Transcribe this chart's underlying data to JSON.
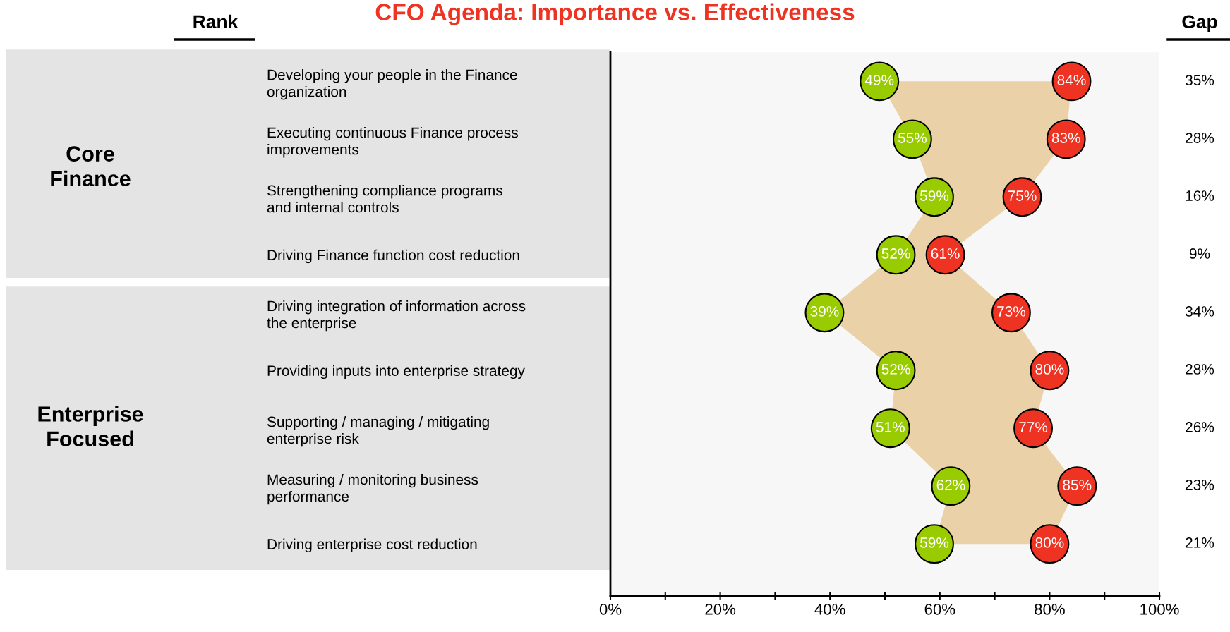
{
  "chart_data": {
    "type": "scatter",
    "title": "CFO Agenda: Importance vs. Effectiveness",
    "categories": [
      "Developing your people in the Finance\norganization",
      "Executing continuous Finance process\nimprovements",
      "Strengthening compliance programs\nand internal controls",
      "Driving Finance function cost reduction",
      "Driving integration of information across\nthe enterprise",
      "Providing inputs into enterprise strategy",
      "Supporting / managing / mitigating\nenterprise risk",
      "Measuring / monitoring business\nperformance",
      "Driving enterprise cost reduction"
    ],
    "series": [
      {
        "color": "#99cc00",
        "values": [
          49,
          55,
          59,
          52,
          39,
          52,
          51,
          62,
          59
        ],
        "value_labels": [
          "49%",
          "55%",
          "59%",
          "52%",
          "39%",
          "52%",
          "51%",
          "62%",
          "59%"
        ]
      },
      {
        "color": "#ee3322",
        "values": [
          84,
          83,
          75,
          61,
          73,
          80,
          77,
          85,
          80
        ],
        "value_labels": [
          "84%",
          "83%",
          "75%",
          "61%",
          "73%",
          "80%",
          "77%",
          "85%",
          "80%"
        ]
      }
    ],
    "orientation": "horizontal",
    "xlim": [
      0,
      100
    ],
    "xticks": [
      {
        "value": 0,
        "label": "0%"
      },
      {
        "value": 10,
        "label": null
      },
      {
        "value": 20,
        "label": "20%"
      },
      {
        "value": 30,
        "label": null
      },
      {
        "value": 40,
        "label": "40%"
      },
      {
        "value": 50,
        "label": null
      },
      {
        "value": 60,
        "label": "60%"
      },
      {
        "value": 70,
        "label": null
      },
      {
        "value": 80,
        "label": "80%"
      },
      {
        "value": 90,
        "label": null
      },
      {
        "value": 100,
        "label": "100%"
      }
    ],
    "annotations": [
      "Rank",
      "Gap",
      "Core\nFinance",
      "Enterprise\nFocused",
      "35%",
      "28%",
      "16%",
      "9%",
      "34%",
      "28%",
      "26%",
      "23%",
      "21%"
    ],
    "marker": "circle",
    "grid": false,
    "legend": false
  }
}
